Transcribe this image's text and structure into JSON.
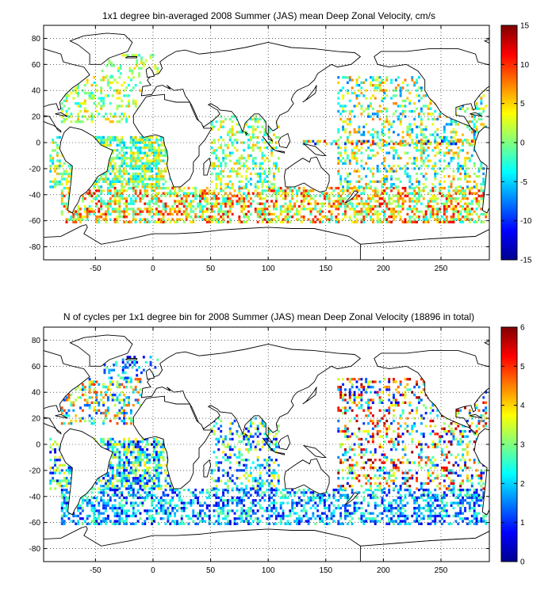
{
  "chart_data": [
    {
      "type": "heatmap",
      "title": "1x1 degree bin-averaged 2008 Summer (JAS) mean Deep Zonal Velocity, cm/s",
      "xlabel": "",
      "ylabel": "",
      "xlim": [
        -95,
        292
      ],
      "ylim": [
        -90,
        90
      ],
      "x_ticks": [
        -50,
        0,
        50,
        100,
        150,
        200,
        250
      ],
      "y_ticks": [
        -80,
        -60,
        -40,
        -20,
        0,
        20,
        40,
        60,
        80
      ],
      "grid": true,
      "colorbar": {
        "range": [
          -15,
          15
        ],
        "ticks": [
          -15,
          -10,
          -5,
          0,
          5,
          10,
          15
        ],
        "colormap": "jet"
      },
      "map_background": "world coastlines",
      "seed": 11,
      "regions": [
        {
          "lon": [
            -80,
            -10
          ],
          "lat": [
            15,
            50
          ],
          "density": 0.35,
          "value_range": [
            -4,
            6
          ]
        },
        {
          "lon": [
            -45,
            5
          ],
          "lat": [
            50,
            68
          ],
          "density": 0.22,
          "value_range": [
            -3,
            5
          ]
        },
        {
          "lon": [
            -90,
            5
          ],
          "lat": [
            -35,
            5
          ],
          "density": 0.45,
          "value_range": [
            -6,
            6
          ]
        },
        {
          "lon": [
            -60,
            20
          ],
          "lat": [
            -35,
            5
          ],
          "density": 0.45,
          "value_range": [
            -6,
            6
          ]
        },
        {
          "lon": [
            -80,
            290
          ],
          "lat": [
            -62,
            -35
          ],
          "density": 0.55,
          "value_range": [
            -4,
            12
          ]
        },
        {
          "lon": [
            50,
            110
          ],
          "lat": [
            -35,
            20
          ],
          "density": 0.35,
          "value_range": [
            -6,
            6
          ]
        },
        {
          "lon": [
            160,
            290
          ],
          "lat": [
            -35,
            50
          ],
          "density": 0.32,
          "value_range": [
            -8,
            8
          ]
        },
        {
          "lon": [
            130,
            290
          ],
          "lat": [
            -2,
            2
          ],
          "density": 0.5,
          "value_range": [
            -12,
            12
          ]
        }
      ]
    },
    {
      "type": "heatmap",
      "title": "N of cycles per 1x1 degree bin for 2008 Summer (JAS) mean Deep Zonal Velocity (18896 in total)",
      "xlabel": "",
      "ylabel": "",
      "total_cycles": 18896,
      "xlim": [
        -95,
        292
      ],
      "ylim": [
        -90,
        90
      ],
      "x_ticks": [
        -50,
        0,
        50,
        100,
        150,
        200,
        250
      ],
      "y_ticks": [
        -80,
        -60,
        -40,
        -20,
        0,
        20,
        40,
        60,
        80
      ],
      "grid": true,
      "colorbar": {
        "range": [
          0,
          6
        ],
        "ticks": [
          0,
          1,
          2,
          3,
          4,
          5,
          6
        ],
        "colormap": "jet"
      },
      "map_background": "world coastlines",
      "seed": 29,
      "regions": [
        {
          "lon": [
            -80,
            -10
          ],
          "lat": [
            15,
            50
          ],
          "density": 0.35,
          "value_range": [
            1,
            5
          ]
        },
        {
          "lon": [
            -45,
            5
          ],
          "lat": [
            50,
            68
          ],
          "density": 0.22,
          "value_range": [
            0.5,
            3
          ]
        },
        {
          "lon": [
            -90,
            5
          ],
          "lat": [
            -35,
            5
          ],
          "density": 0.4,
          "value_range": [
            0.5,
            4
          ]
        },
        {
          "lon": [
            -60,
            20
          ],
          "lat": [
            -35,
            5
          ],
          "density": 0.4,
          "value_range": [
            0.5,
            4
          ]
        },
        {
          "lon": [
            -80,
            290
          ],
          "lat": [
            -62,
            -35
          ],
          "density": 0.5,
          "value_range": [
            0.5,
            3
          ]
        },
        {
          "lon": [
            50,
            110
          ],
          "lat": [
            -35,
            20
          ],
          "density": 0.35,
          "value_range": [
            0.5,
            4
          ]
        },
        {
          "lon": [
            160,
            290
          ],
          "lat": [
            -35,
            50
          ],
          "density": 0.3,
          "value_range": [
            0.5,
            6
          ]
        }
      ]
    }
  ]
}
